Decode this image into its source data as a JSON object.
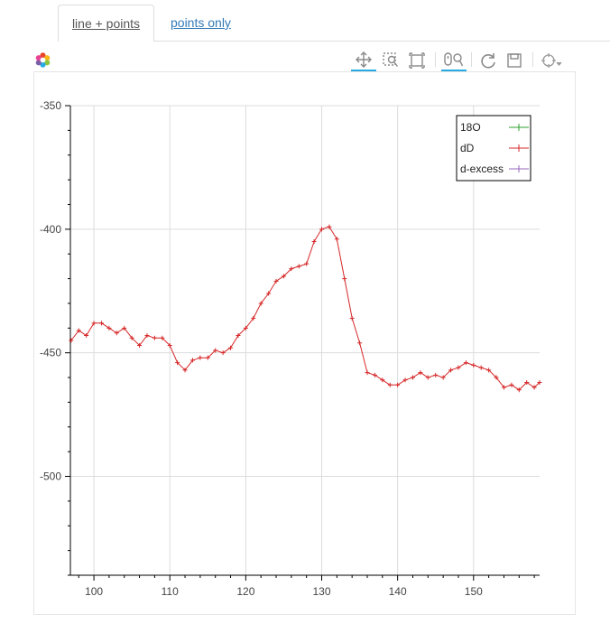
{
  "tabs": [
    {
      "label": "line + points",
      "active": true
    },
    {
      "label": "points only",
      "active": false
    }
  ],
  "toolbar": {
    "tools": [
      "pan-icon",
      "box-zoom-icon",
      "box-select-icon",
      "wheel-zoom-icon",
      "reset-icon",
      "save-icon",
      "crosshair-hover-icon"
    ],
    "active_tools": [
      "pan-icon",
      "wheel-zoom-icon"
    ]
  },
  "chart_data": {
    "type": "line",
    "title": "",
    "xlabel": "",
    "ylabel": "",
    "xlim": [
      96.9,
      158.7
    ],
    "ylim": [
      -540,
      -350
    ],
    "x_ticks": [
      100,
      110,
      120,
      130,
      140,
      150
    ],
    "x_tick_labels": [
      "100",
      "110",
      "120",
      "130",
      "140",
      "150"
    ],
    "y_ticks": [
      -350,
      -400,
      -450,
      -500
    ],
    "y_tick_labels": [
      "-350",
      "-400",
      "-450",
      "-500"
    ],
    "grid": true,
    "legend_position": "top-right",
    "legend": [
      {
        "label": "18O",
        "color": "#2ca02c"
      },
      {
        "label": "dD",
        "color": "#d62728"
      },
      {
        "label": "d-excess",
        "color": "#9467bd"
      }
    ],
    "series": [
      {
        "name": "dD",
        "color": "#d62728",
        "x": [
          97,
          98,
          99,
          100,
          101,
          102,
          103,
          104,
          105,
          106,
          107,
          108,
          109,
          110,
          111,
          112,
          113,
          114,
          115,
          116,
          117,
          118,
          119,
          120,
          121,
          122,
          123,
          124,
          125,
          126,
          127,
          128,
          129,
          130,
          131,
          132,
          133,
          134,
          135,
          136,
          137,
          138,
          139,
          140,
          141,
          142,
          143,
          144,
          145,
          146,
          147,
          148,
          149,
          150,
          151,
          152,
          153,
          154,
          155,
          156,
          157,
          158,
          158.7
        ],
        "y": [
          -445,
          -441,
          -443,
          -438,
          -438,
          -440,
          -442,
          -440,
          -444,
          -447,
          -443,
          -444,
          -444,
          -447,
          -454,
          -457,
          -453,
          -452,
          -452,
          -449,
          -450,
          -448,
          -443,
          -440,
          -436,
          -430,
          -426,
          -421,
          -419,
          -416,
          -415,
          -414,
          -405,
          -400,
          -399,
          -404,
          -420,
          -436,
          -446,
          -458,
          -459,
          -461,
          -463,
          -463,
          -461,
          -460,
          -458,
          -460,
          -459,
          -460,
          -457,
          -456,
          -454,
          -455,
          -456,
          -457,
          -460,
          -464,
          -463,
          -465,
          -462,
          -464,
          -462
        ]
      }
    ]
  }
}
